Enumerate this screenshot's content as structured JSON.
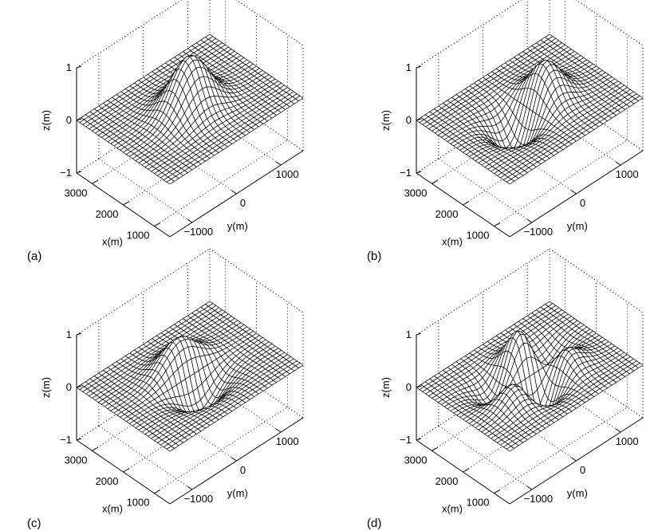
{
  "chart_data": [
    {
      "type": "surface",
      "panel_label": "(a)",
      "xlabel": "x(m)",
      "ylabel": "y(m)",
      "zlabel": "z(m)",
      "xticks": [
        "1000",
        "2000",
        "3000"
      ],
      "yticks": [
        "−1000",
        "0",
        "1000"
      ],
      "zticks": [
        "−1",
        "0",
        "1"
      ],
      "xlim": [
        500,
        3500
      ],
      "ylim": [
        -1500,
        1500
      ],
      "zlim": [
        -1,
        1
      ],
      "grid": "dotted",
      "mode": [
        0,
        0
      ],
      "peak_z": 1.0
    },
    {
      "type": "surface",
      "panel_label": "(b)",
      "xlabel": "x(m)",
      "ylabel": "y(m)",
      "zlabel": "z(m)",
      "xticks": [
        "1000",
        "2000",
        "3000"
      ],
      "yticks": [
        "−1000",
        "0",
        "1000"
      ],
      "zticks": [
        "−1",
        "0",
        "1"
      ],
      "xlim": [
        500,
        3500
      ],
      "ylim": [
        -1500,
        1500
      ],
      "zlim": [
        -1,
        1
      ],
      "grid": "dotted",
      "mode": [
        1,
        0
      ],
      "peak_z": 1.0
    },
    {
      "type": "surface",
      "panel_label": "(c)",
      "xlabel": "x(m)",
      "ylabel": "y(m)",
      "zlabel": "z(m)",
      "xticks": [
        "1000",
        "2000",
        "3000"
      ],
      "yticks": [
        "−1000",
        "0",
        "1000"
      ],
      "zticks": [
        "−1",
        "0",
        "1"
      ],
      "xlim": [
        500,
        3500
      ],
      "ylim": [
        -1500,
        1500
      ],
      "zlim": [
        -1,
        1
      ],
      "grid": "dotted",
      "mode": [
        0,
        1
      ],
      "peak_z": 0.8
    },
    {
      "type": "surface",
      "panel_label": "(d)",
      "xlabel": "x(m)",
      "ylabel": "y(m)",
      "zlabel": "z(m)",
      "xticks": [
        "1000",
        "2000",
        "3000"
      ],
      "yticks": [
        "−1000",
        "0",
        "1000"
      ],
      "zticks": [
        "−1",
        "0",
        "1"
      ],
      "xlim": [
        500,
        3500
      ],
      "ylim": [
        -1500,
        1500
      ],
      "zlim": [
        -1,
        1
      ],
      "grid": "dotted",
      "mode": [
        2,
        1
      ],
      "peak_z": 1.0
    }
  ]
}
